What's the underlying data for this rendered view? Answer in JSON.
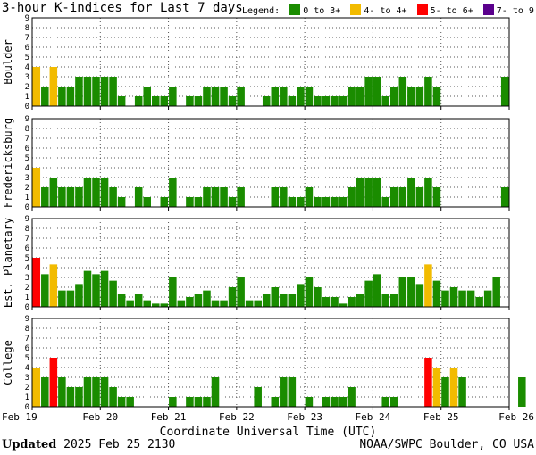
{
  "title": "3-hour K-indices for Last 7 days",
  "legend": {
    "label": "Legend:",
    "items": [
      {
        "label": "0 to 3+",
        "color": "#1a8c00"
      },
      {
        "label": "4- to 4+",
        "color": "#f2bb00"
      },
      {
        "label": "5- to 6+",
        "color": "#ff0000"
      },
      {
        "label": "7- to 9",
        "color": "#5a008c"
      }
    ]
  },
  "footer": {
    "updated_label": "Updated",
    "updated_value": "2025 Feb 25 2130",
    "source": "NOAA/SWPC Boulder, CO USA"
  },
  "chart_data": {
    "type": "bar",
    "xlabel": "Coordinate Universal Time (UTC)",
    "x_ticks": [
      "Feb 19",
      "Feb 20",
      "Feb 21",
      "Feb 22",
      "Feb 23",
      "Feb 24",
      "Feb 25",
      "Feb 26"
    ],
    "ylim": [
      0,
      9
    ],
    "y_ticks": [
      0,
      1,
      2,
      3,
      4,
      5,
      6,
      7,
      8,
      9
    ],
    "bars_per_day": 8,
    "panels": [
      {
        "name": "Boulder",
        "values": [
          4,
          2,
          4,
          2,
          2,
          3,
          3,
          3,
          3,
          3,
          1,
          0,
          1,
          2,
          1,
          1,
          2,
          0,
          1,
          1,
          2,
          2,
          2,
          1,
          2,
          0,
          0,
          1,
          2,
          2,
          1,
          2,
          2,
          1,
          1,
          1,
          1,
          2,
          2,
          3,
          3,
          1,
          2,
          3,
          2,
          2,
          3,
          2,
          0,
          0,
          0,
          0,
          0,
          0,
          0,
          3,
          0
        ]
      },
      {
        "name": "Fredericksburg",
        "values": [
          4,
          2,
          3,
          2,
          2,
          2,
          3,
          3,
          3,
          2,
          1,
          0,
          2,
          1,
          0,
          1,
          3,
          0,
          1,
          1,
          2,
          2,
          2,
          1,
          2,
          0,
          0,
          0,
          2,
          2,
          1,
          1,
          2,
          1,
          1,
          1,
          1,
          2,
          3,
          3,
          3,
          1,
          2,
          2,
          3,
          2,
          3,
          2,
          0,
          0,
          0,
          0,
          0,
          0,
          0,
          2,
          0
        ]
      },
      {
        "name": "Est. Planetary",
        "values": [
          5,
          3.33,
          4.33,
          1.67,
          1.67,
          2.33,
          3.67,
          3.33,
          3.67,
          2.67,
          1.33,
          0.67,
          1.33,
          0.67,
          0.33,
          0.33,
          3,
          0.67,
          1,
          1.33,
          1.67,
          0.67,
          0.67,
          2,
          3,
          0.67,
          0.67,
          1.33,
          2,
          1.33,
          1.33,
          2.33,
          3,
          2,
          1,
          1,
          0.33,
          1,
          1.33,
          2.67,
          3.33,
          1.33,
          1.33,
          3,
          3,
          2.33,
          4.33,
          2.67,
          1.67,
          2,
          1.67,
          1.67,
          1,
          1.67,
          3
        ]
      },
      {
        "name": "College",
        "values": [
          4,
          3,
          5,
          3,
          2,
          2,
          3,
          3,
          3,
          2,
          1,
          1,
          0,
          0,
          0,
          0,
          1,
          0,
          1,
          1,
          1,
          3,
          0,
          0,
          0,
          0,
          2,
          0,
          1,
          3,
          3,
          0,
          1,
          0,
          1,
          1,
          1,
          2,
          0,
          0,
          0,
          1,
          1,
          0,
          0,
          0,
          5,
          4,
          3,
          4,
          3,
          0,
          0,
          0,
          0,
          0,
          0,
          3,
          0
        ]
      }
    ]
  }
}
